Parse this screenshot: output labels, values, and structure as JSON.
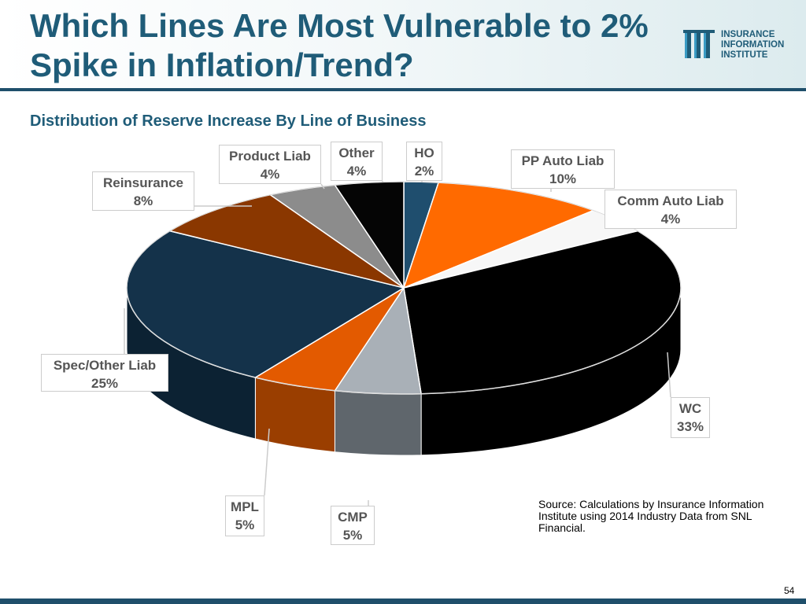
{
  "slide": {
    "title": "Which Lines Are Most Vulnerable to 2% Spike in Inflation/Trend?",
    "subtitle": "Distribution of Reserve Increase By Line of Business",
    "source": "Source: Calculations by Insurance Information Institute using 2014 Industry Data from SNL Financial.",
    "page_number": "54"
  },
  "logo": {
    "lines": [
      "INSURANCE",
      "INFORMATION",
      "INSTITUTE"
    ]
  },
  "chart_data": {
    "type": "pie",
    "title": "Distribution of Reserve Increase By Line of Business",
    "unit": "%",
    "categories": [
      "HO",
      "PP Auto Liab",
      "Comm Auto Liab",
      "WC",
      "CMP",
      "MPL",
      "Spec/Other Liab",
      "Reinsurance",
      "Product Liab",
      "Other"
    ],
    "values": [
      2,
      10,
      4,
      33,
      5,
      5,
      25,
      8,
      4,
      4
    ],
    "value_labels": [
      "2%",
      "10%",
      "4%",
      "33%",
      "5%",
      "5%",
      "25%",
      "8%",
      "4%",
      "4%"
    ],
    "colors": [
      "#1f4e6e",
      "#ff6a00",
      "#f7f7f7",
      "#000000",
      "#a9b0b7",
      "#e35a00",
      "#14324a",
      "#8a3700",
      "#8c8c8c",
      "#050505"
    ],
    "side_colors": [
      "#163a52",
      "#b84c00",
      "#cfcfcf",
      "#000000",
      "#5f666c",
      "#9a3e00",
      "#0c2233",
      "#5a2400",
      "#5c5c5c",
      "#000000"
    ],
    "legend": "none"
  }
}
